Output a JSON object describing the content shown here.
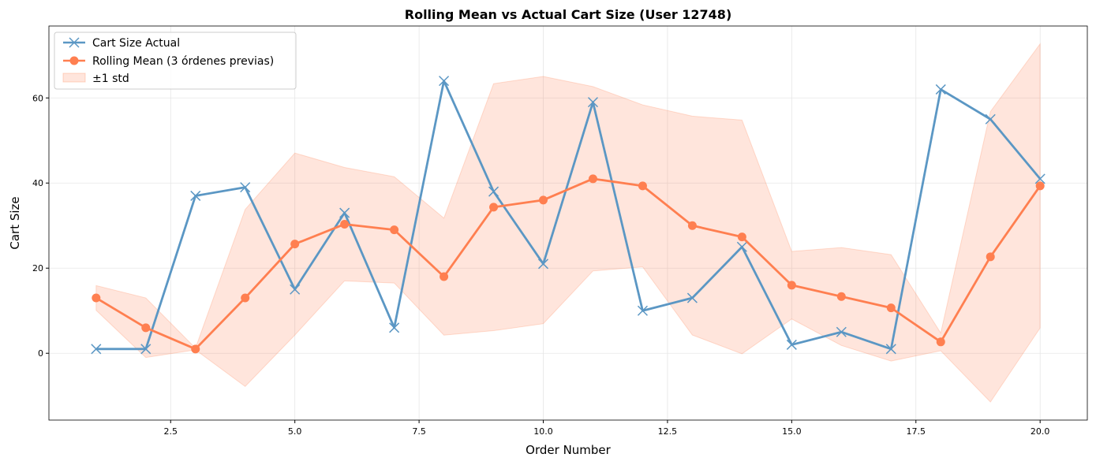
{
  "chart_data": {
    "type": "line",
    "title": "Rolling Mean vs Actual Cart Size (User 12748)",
    "xlabel": "Order Number",
    "ylabel": "Cart Size",
    "xlim": [
      0.05,
      20.95
    ],
    "ylim": [
      -15.7,
      76.9
    ],
    "xticks": [
      2.5,
      5.0,
      7.5,
      10.0,
      12.5,
      15.0,
      17.5,
      20.0
    ],
    "xtick_labels": [
      "2.5",
      "5.0",
      "7.5",
      "10.0",
      "12.5",
      "15.0",
      "17.5",
      "20.0"
    ],
    "yticks": [
      0,
      20,
      40,
      60
    ],
    "ytick_labels": [
      "0",
      "20",
      "40",
      "60"
    ],
    "grid": true,
    "legend_position": "top-left",
    "x": [
      1,
      2,
      3,
      4,
      5,
      6,
      7,
      8,
      9,
      10,
      11,
      12,
      13,
      14,
      15,
      16,
      17,
      18,
      19,
      20
    ],
    "series": [
      {
        "name": "Cart Size Actual",
        "color": "#5b97c4",
        "marker": "x",
        "values": [
          1,
          1,
          37,
          39,
          15,
          33,
          6,
          64,
          38,
          21,
          59,
          10,
          13,
          25,
          2,
          5,
          1,
          62,
          55,
          41
        ]
      },
      {
        "name": "Rolling Mean (3 órdenes previas)",
        "color": "#ff7f50",
        "marker": "o",
        "values": [
          13,
          6,
          1,
          13,
          25.67,
          30.33,
          29,
          18,
          34.33,
          36,
          41,
          39.33,
          30,
          27.33,
          16,
          13.33,
          10.67,
          2.67,
          22.67,
          39.33
        ]
      }
    ],
    "band": {
      "name": "±1 std",
      "color": "#ff7f50",
      "upper": [
        15.9,
        13,
        1.2,
        33.8,
        47.05,
        43.65,
        41.49,
        31.75,
        63.35,
        65.05,
        62.66,
        58.37,
        55.71,
        54.8,
        23.94,
        24.83,
        23.17,
        4.75,
        56.79,
        72.71
      ],
      "lower": [
        10.1,
        -1,
        0.8,
        -7.8,
        4.28,
        17.02,
        16.51,
        4.25,
        5.31,
        6.95,
        19.34,
        20.3,
        4.29,
        -0.13,
        8.06,
        1.83,
        -1.83,
        0.59,
        -11.45,
        5.95
      ]
    }
  }
}
